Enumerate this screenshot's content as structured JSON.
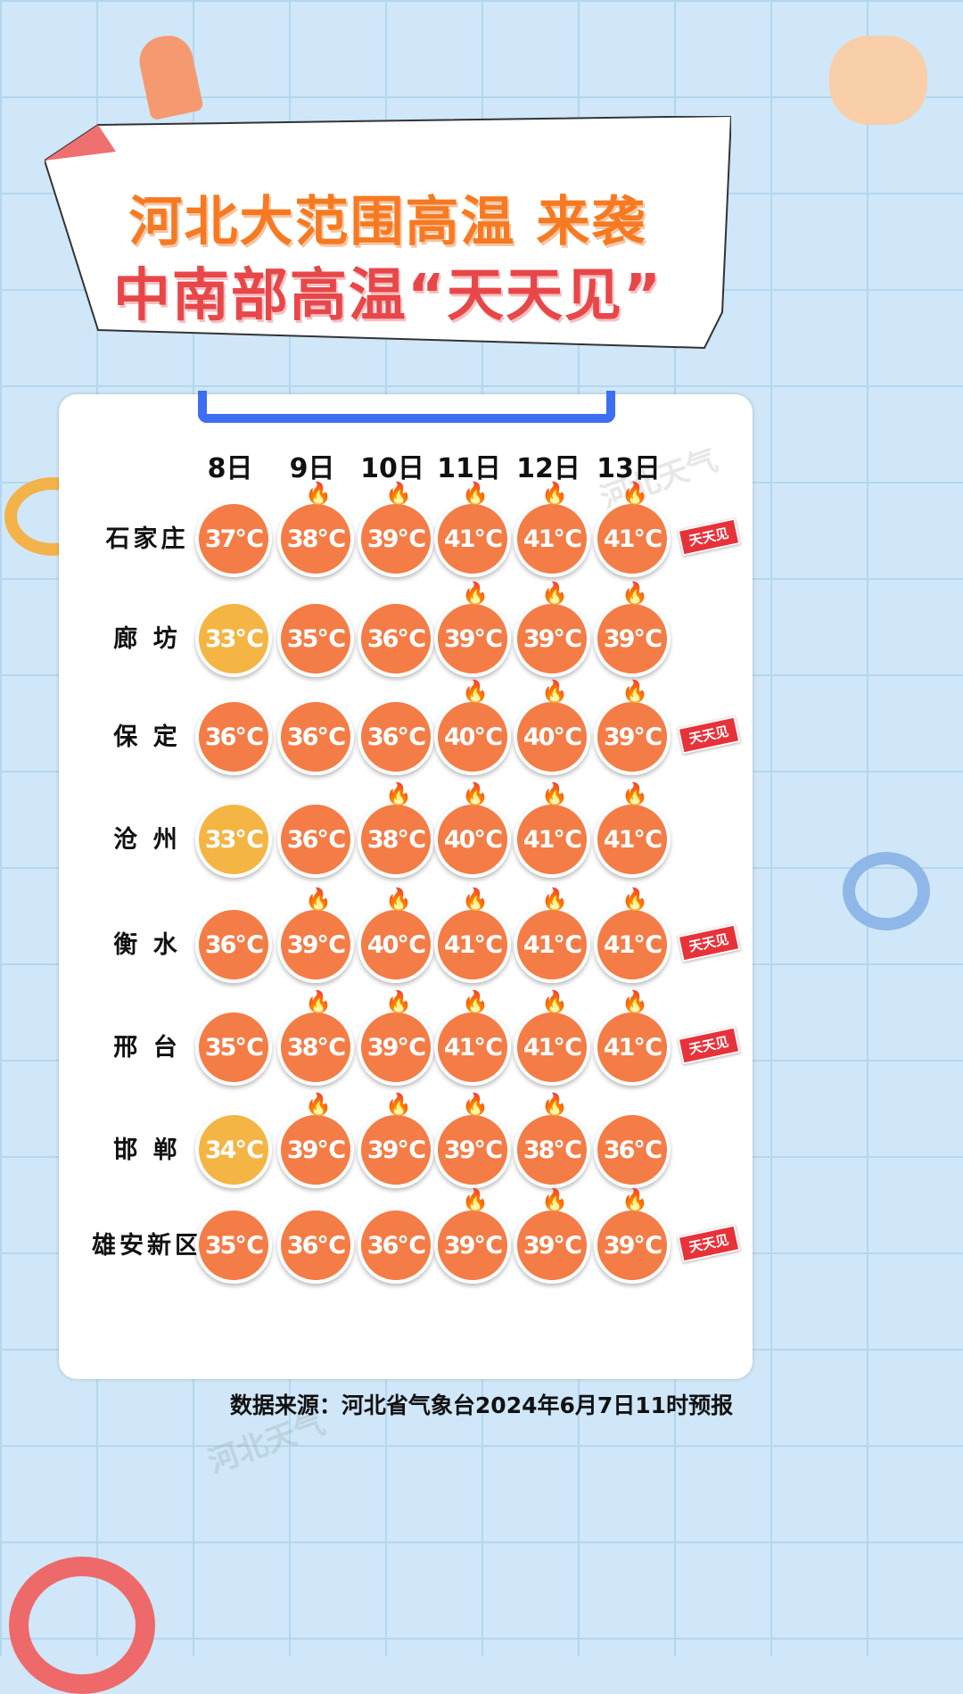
{
  "title": {
    "line1": "河北大范围高温 来袭",
    "line2": "中南部高温“天天见”"
  },
  "watermark": "河北天气",
  "days": [
    "8日",
    "9日",
    "10日",
    "11日",
    "12日",
    "13日"
  ],
  "badge_label": "天天见",
  "colors": {
    "hot": "#f47c46",
    "mild": "#f4b544",
    "bracket": "#3d6ff2",
    "badge": "#e8323a"
  },
  "legend_rules": {
    "flame_icon_at_or_above": 38,
    "mild_color_at_or_below": 34
  },
  "rows": [
    {
      "city": "石家庄",
      "temps": [
        "37℃",
        "38℃",
        "39℃",
        "41℃",
        "41℃",
        "41℃"
      ],
      "badge": true
    },
    {
      "city": "廊 坊",
      "temps": [
        "33℃",
        "35℃",
        "36℃",
        "39℃",
        "39℃",
        "39℃"
      ],
      "badge": false
    },
    {
      "city": "保 定",
      "temps": [
        "36℃",
        "36℃",
        "36℃",
        "40℃",
        "40℃",
        "39℃"
      ],
      "badge": true
    },
    {
      "city": "沧 州",
      "temps": [
        "33℃",
        "36℃",
        "38℃",
        "40℃",
        "41℃",
        "41℃"
      ],
      "badge": false
    },
    {
      "city": "衡 水",
      "temps": [
        "36℃",
        "39℃",
        "40℃",
        "41℃",
        "41℃",
        "41℃"
      ],
      "badge": true
    },
    {
      "city": "邢 台",
      "temps": [
        "35℃",
        "38℃",
        "39℃",
        "41℃",
        "41℃",
        "41℃"
      ],
      "badge": true
    },
    {
      "city": "邯 郸",
      "temps": [
        "34℃",
        "39℃",
        "39℃",
        "39℃",
        "38℃",
        "36℃"
      ],
      "badge": false
    },
    {
      "city": "雄安新区",
      "temps": [
        "35℃",
        "36℃",
        "36℃",
        "39℃",
        "39℃",
        "39℃"
      ],
      "badge": true
    }
  ],
  "footer": "数据来源：河北省气象台2024年6月7日11时预报"
}
